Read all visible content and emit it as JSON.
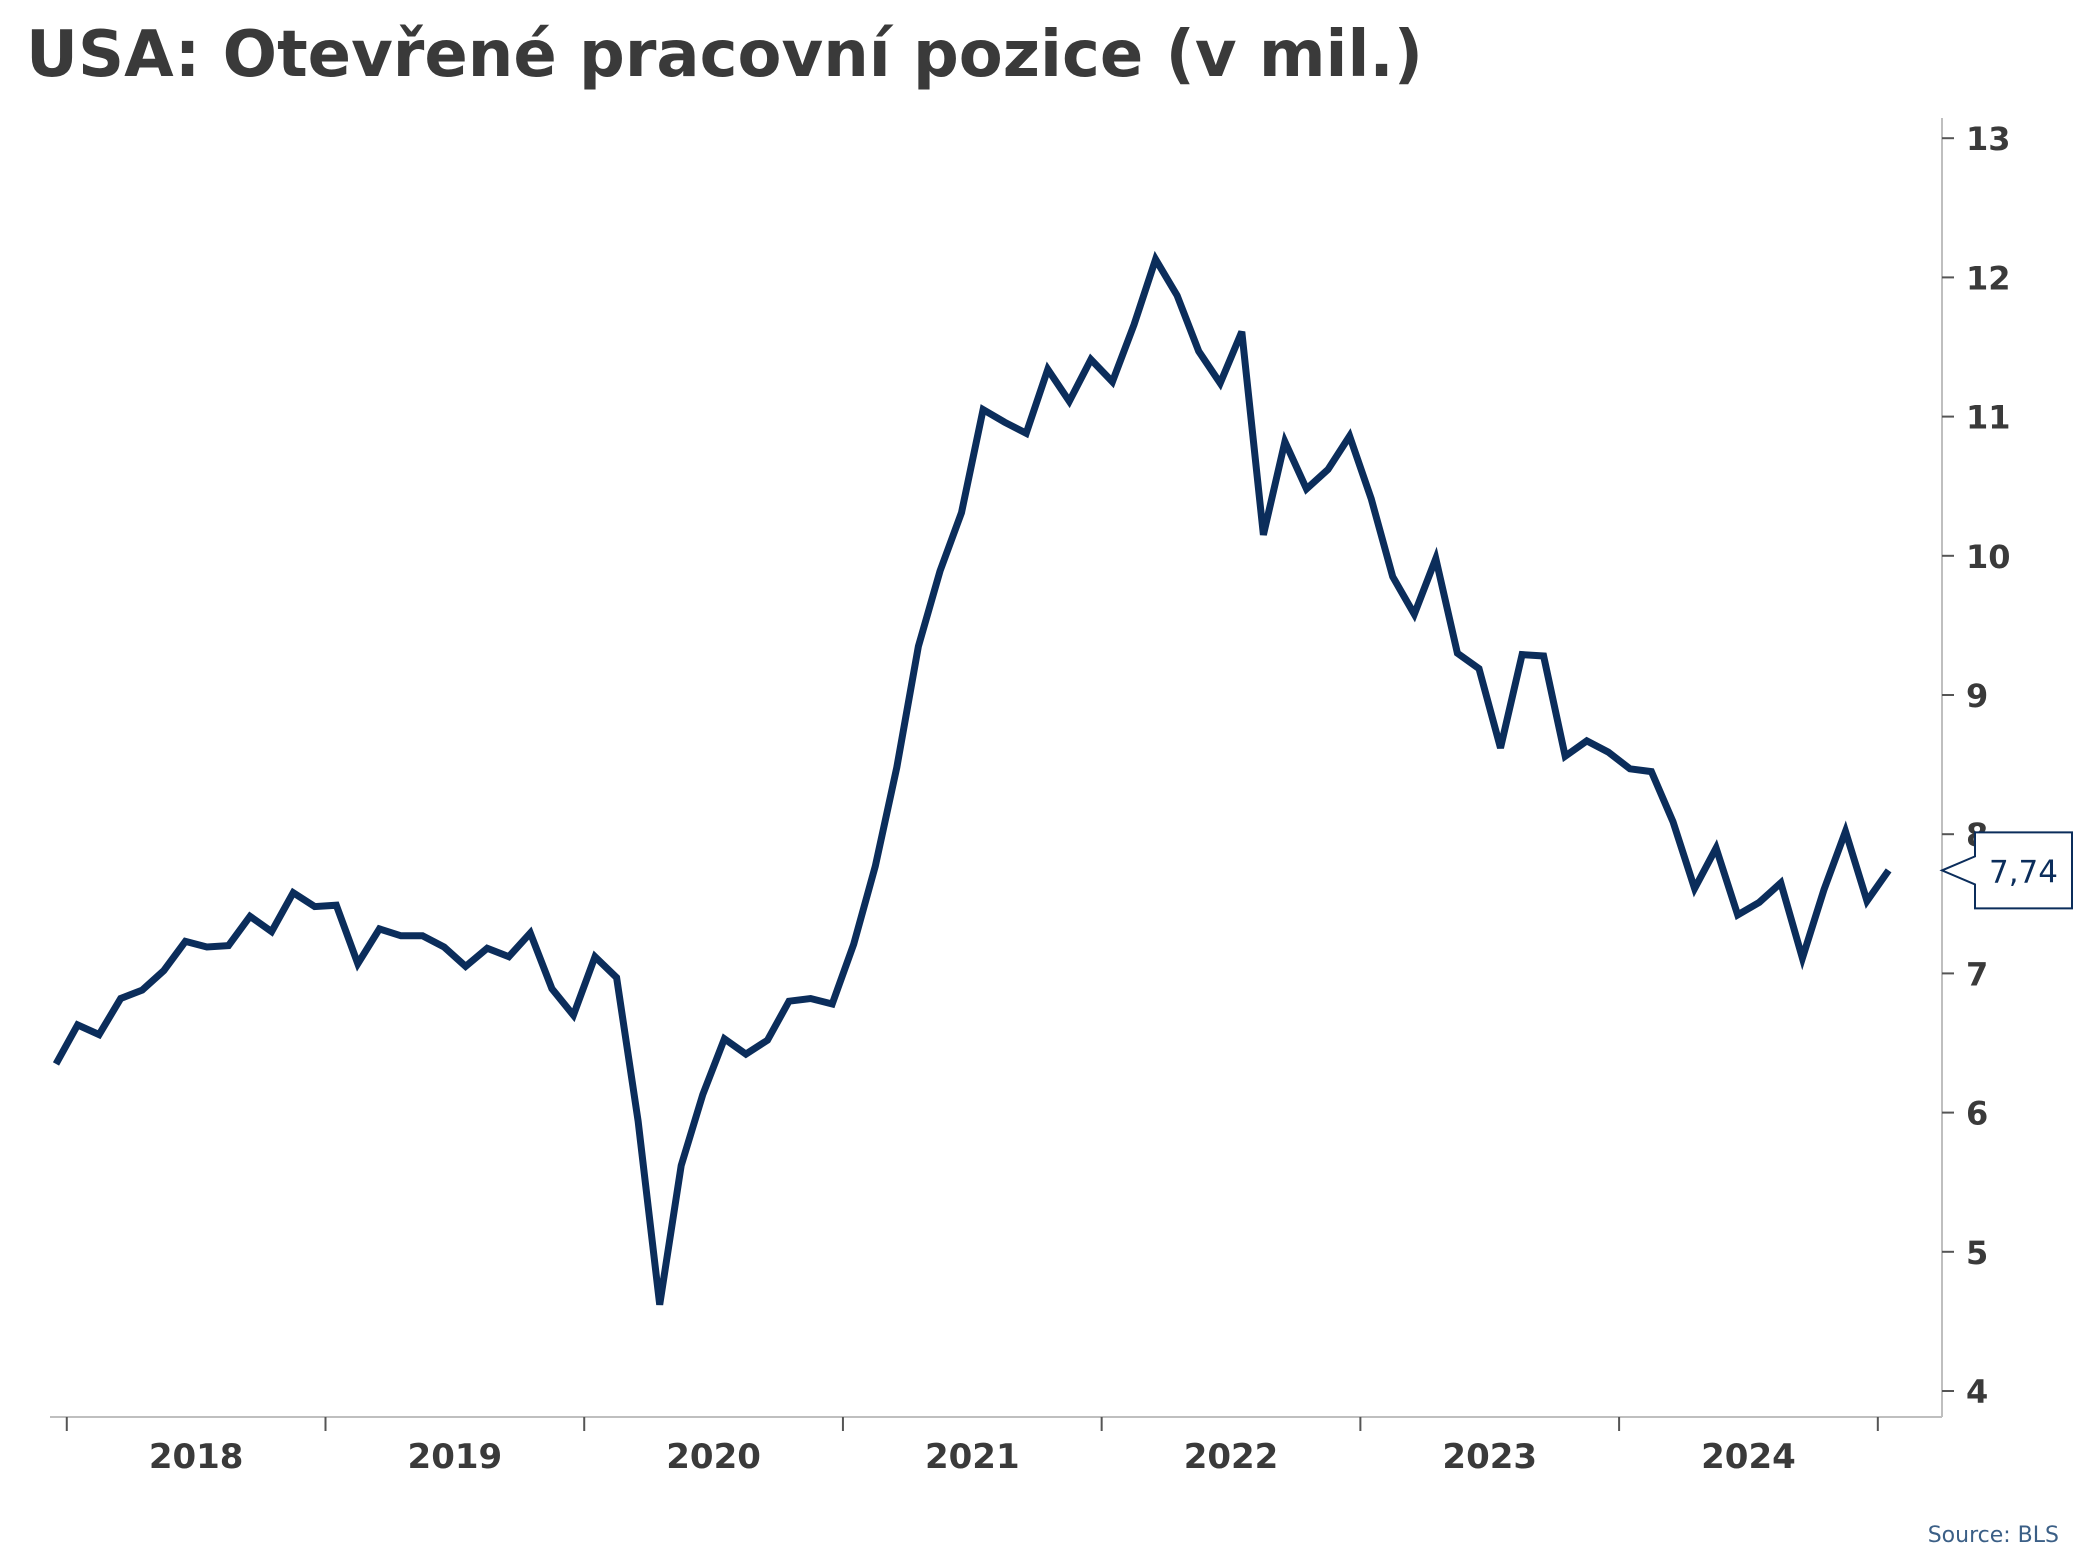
{
  "chart_data": {
    "type": "line",
    "title": "USA: Otevřené pracovní pozice (v mil.)",
    "source": "Source: BLS",
    "xlabel": "",
    "ylabel": "",
    "ylim": [
      3.8,
      13.2
    ],
    "y_ticks": [
      4,
      5,
      6,
      7,
      8,
      9,
      10,
      11,
      12,
      13
    ],
    "x_tick_labels": [
      "2018",
      "2019",
      "2020",
      "2021",
      "2022",
      "2023",
      "2024"
    ],
    "last_value_label": "7,74",
    "colors": {
      "line": "#0b2d5b",
      "text": "#3a3a3a",
      "axis": "#bfbfbf",
      "source": "#3b5f86"
    },
    "series": [
      {
        "x_start": "2017-12",
        "frequency": "monthly",
        "values": [
          6.35,
          6.63,
          6.56,
          6.82,
          6.88,
          7.02,
          7.23,
          7.19,
          7.2,
          7.41,
          7.3,
          7.58,
          7.48,
          7.49,
          7.07,
          7.32,
          7.27,
          7.27,
          7.19,
          7.05,
          7.18,
          7.12,
          7.29,
          6.89,
          6.7,
          7.12,
          6.97,
          5.94,
          4.62,
          5.62,
          6.13,
          6.53,
          6.42,
          6.52,
          6.8,
          6.82,
          6.78,
          7.21,
          7.77,
          8.48,
          9.35,
          9.89,
          10.31,
          11.05,
          10.96,
          10.88,
          11.34,
          11.11,
          11.41,
          11.25,
          11.66,
          12.13,
          11.87,
          11.47,
          11.24,
          11.61,
          10.15,
          10.82,
          10.48,
          10.62,
          10.86,
          10.41,
          9.85,
          9.58,
          9.98,
          9.3,
          9.19,
          8.62,
          9.29,
          9.28,
          8.56,
          8.67,
          8.59,
          8.47,
          8.45,
          8.09,
          7.61,
          7.9,
          7.42,
          7.51,
          7.65,
          7.11,
          7.6,
          8.02,
          7.52,
          7.74
        ]
      }
    ]
  }
}
